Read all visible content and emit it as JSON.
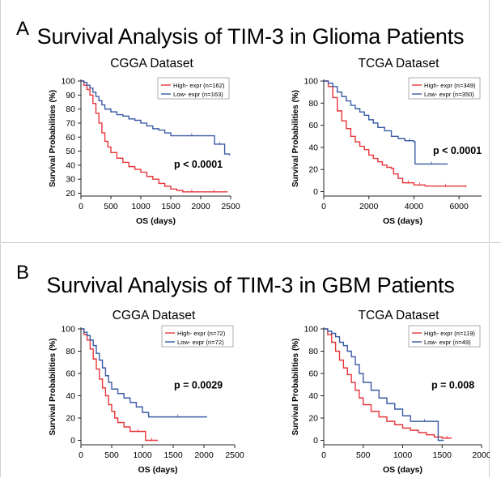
{
  "panels": [
    {
      "letter": "A",
      "title": "Survival Analysis of TIM-3 in Glioma Patients"
    },
    {
      "letter": "B",
      "title": "Survival Analysis of TIM-3 in GBM Patients"
    }
  ],
  "colors": {
    "high": "#e8363b",
    "low": "#3a5ba5",
    "axis": "#222222"
  },
  "chart_data": [
    {
      "type": "line",
      "title": "CGGA Dataset",
      "xlabel": "OS (days)",
      "ylabel": "Survival Probabilities (%)",
      "xlim": [
        0,
        2500
      ],
      "ylim": [
        18,
        100
      ],
      "xticks": [
        0,
        500,
        1000,
        1500,
        2000,
        2500
      ],
      "yticks": [
        20,
        30,
        40,
        50,
        60,
        70,
        80,
        90,
        100
      ],
      "pvalue": "p < 0.0001",
      "legend_position": "top-right",
      "series": [
        {
          "name": "High- expr (n=162)",
          "color": "#e8363b",
          "points": [
            [
              0,
              100
            ],
            [
              50,
              97
            ],
            [
              100,
              94
            ],
            [
              150,
              90
            ],
            [
              200,
              84
            ],
            [
              250,
              77
            ],
            [
              300,
              70
            ],
            [
              350,
              63
            ],
            [
              400,
              57
            ],
            [
              450,
              53
            ],
            [
              500,
              49
            ],
            [
              600,
              45
            ],
            [
              700,
              42
            ],
            [
              800,
              39
            ],
            [
              900,
              37
            ],
            [
              1000,
              35
            ],
            [
              1100,
              32
            ],
            [
              1200,
              30
            ],
            [
              1300,
              27
            ],
            [
              1400,
              25
            ],
            [
              1500,
              23
            ],
            [
              1600,
              22
            ],
            [
              1700,
              21
            ],
            [
              2000,
              21
            ],
            [
              2450,
              21
            ]
          ]
        },
        {
          "name": "Low- expr (n=163)",
          "color": "#3a5ba5",
          "points": [
            [
              0,
              100
            ],
            [
              50,
              99
            ],
            [
              100,
              97
            ],
            [
              150,
              95
            ],
            [
              200,
              92
            ],
            [
              250,
              89
            ],
            [
              300,
              86
            ],
            [
              350,
              83
            ],
            [
              400,
              80
            ],
            [
              500,
              78
            ],
            [
              600,
              76
            ],
            [
              700,
              75
            ],
            [
              800,
              73
            ],
            [
              900,
              72
            ],
            [
              1000,
              70
            ],
            [
              1100,
              68
            ],
            [
              1200,
              66
            ],
            [
              1300,
              65
            ],
            [
              1400,
              63
            ],
            [
              1500,
              61
            ],
            [
              2200,
              61
            ],
            [
              2230,
              55
            ],
            [
              2400,
              48
            ],
            [
              2480,
              47
            ]
          ]
        }
      ]
    },
    {
      "type": "line",
      "title": "TCGA Dataset",
      "xlabel": "OS (days)",
      "ylabel": "Survival Probabilities (%)",
      "xlim": [
        0,
        7000
      ],
      "ylim": [
        -4,
        100
      ],
      "xticks": [
        0,
        2000,
        4000,
        6000
      ],
      "yticks": [
        0,
        20,
        40,
        60,
        80,
        100
      ],
      "pvalue": "p < 0.0001",
      "legend_position": "top-right",
      "series": [
        {
          "name": "High- expr (n=349)",
          "color": "#e8363b",
          "points": [
            [
              0,
              100
            ],
            [
              200,
              95
            ],
            [
              400,
              85
            ],
            [
              600,
              73
            ],
            [
              800,
              64
            ],
            [
              1000,
              57
            ],
            [
              1200,
              50
            ],
            [
              1400,
              45
            ],
            [
              1600,
              41
            ],
            [
              1800,
              38
            ],
            [
              2000,
              33
            ],
            [
              2200,
              30
            ],
            [
              2400,
              27
            ],
            [
              2600,
              24
            ],
            [
              2800,
              22
            ],
            [
              3000,
              21
            ],
            [
              3100,
              16
            ],
            [
              3300,
              12
            ],
            [
              3500,
              8
            ],
            [
              4000,
              6
            ],
            [
              4500,
              5
            ],
            [
              6300,
              4
            ]
          ]
        },
        {
          "name": "Low- expr (n=350)",
          "color": "#3a5ba5",
          "points": [
            [
              0,
              100
            ],
            [
              200,
              98
            ],
            [
              400,
              95
            ],
            [
              600,
              90
            ],
            [
              800,
              86
            ],
            [
              1000,
              82
            ],
            [
              1200,
              78
            ],
            [
              1400,
              75
            ],
            [
              1600,
              72
            ],
            [
              1800,
              69
            ],
            [
              2000,
              65
            ],
            [
              2200,
              62
            ],
            [
              2400,
              58
            ],
            [
              2700,
              55
            ],
            [
              3000,
              50
            ],
            [
              3300,
              48
            ],
            [
              3600,
              46
            ],
            [
              4000,
              45
            ],
            [
              4050,
              25
            ],
            [
              5500,
              25
            ]
          ]
        }
      ]
    },
    {
      "type": "line",
      "title": "CGGA Dataset",
      "xlabel": "OS (days)",
      "ylabel": "Survival Probabilities (%)",
      "xlim": [
        0,
        2500
      ],
      "ylim": [
        -4,
        100
      ],
      "xticks": [
        0,
        500,
        1000,
        1500,
        2000,
        2500
      ],
      "yticks": [
        0,
        20,
        40,
        60,
        80,
        100
      ],
      "pvalue": "p = 0.0029",
      "legend_position": "top-right",
      "series": [
        {
          "name": "High- expr (n=72)",
          "color": "#e8363b",
          "points": [
            [
              0,
              100
            ],
            [
              50,
              95
            ],
            [
              100,
              90
            ],
            [
              150,
              82
            ],
            [
              200,
              73
            ],
            [
              250,
              64
            ],
            [
              300,
              55
            ],
            [
              350,
              47
            ],
            [
              400,
              40
            ],
            [
              450,
              32
            ],
            [
              500,
              26
            ],
            [
              550,
              20
            ],
            [
              600,
              16
            ],
            [
              700,
              12
            ],
            [
              800,
              8
            ],
            [
              1050,
              8
            ],
            [
              1050,
              0
            ],
            [
              1250,
              0
            ]
          ]
        },
        {
          "name": "Low- expr (n=72)",
          "color": "#3a5ba5",
          "points": [
            [
              0,
              100
            ],
            [
              50,
              97
            ],
            [
              100,
              94
            ],
            [
              150,
              90
            ],
            [
              200,
              85
            ],
            [
              250,
              78
            ],
            [
              300,
              72
            ],
            [
              350,
              65
            ],
            [
              400,
              58
            ],
            [
              450,
              52
            ],
            [
              500,
              46
            ],
            [
              600,
              42
            ],
            [
              700,
              38
            ],
            [
              800,
              34
            ],
            [
              900,
              30
            ],
            [
              1000,
              25
            ],
            [
              1100,
              21
            ],
            [
              2050,
              21
            ]
          ]
        }
      ]
    },
    {
      "type": "line",
      "title": "TCGA Dataset",
      "xlabel": "OS (days)",
      "ylabel": "Survival Probabilities (%)",
      "xlim": [
        0,
        2000
      ],
      "ylim": [
        -4,
        100
      ],
      "xticks": [
        0,
        500,
        1000,
        1500,
        2000
      ],
      "yticks": [
        0,
        20,
        40,
        60,
        80,
        100
      ],
      "pvalue": "p = 0.008",
      "legend_position": "top-right",
      "series": [
        {
          "name": "High- expr (n=119)",
          "color": "#e8363b",
          "points": [
            [
              0,
              100
            ],
            [
              50,
              95
            ],
            [
              100,
              88
            ],
            [
              150,
              80
            ],
            [
              200,
              72
            ],
            [
              250,
              65
            ],
            [
              300,
              59
            ],
            [
              350,
              52
            ],
            [
              400,
              45
            ],
            [
              450,
              38
            ],
            [
              500,
              32
            ],
            [
              600,
              26
            ],
            [
              700,
              21
            ],
            [
              800,
              17
            ],
            [
              900,
              14
            ],
            [
              1000,
              11
            ],
            [
              1100,
              9
            ],
            [
              1200,
              7
            ],
            [
              1300,
              5
            ],
            [
              1400,
              3
            ],
            [
              1500,
              2
            ],
            [
              1620,
              2
            ]
          ]
        },
        {
          "name": "Low- expr (n=49)",
          "color": "#3a5ba5",
          "points": [
            [
              0,
              100
            ],
            [
              50,
              98
            ],
            [
              100,
              96
            ],
            [
              150,
              93
            ],
            [
              200,
              88
            ],
            [
              250,
              85
            ],
            [
              300,
              80
            ],
            [
              350,
              75
            ],
            [
              400,
              68
            ],
            [
              450,
              60
            ],
            [
              500,
              52
            ],
            [
              600,
              45
            ],
            [
              700,
              38
            ],
            [
              800,
              33
            ],
            [
              900,
              28
            ],
            [
              1000,
              22
            ],
            [
              1100,
              17
            ],
            [
              1450,
              17
            ],
            [
              1450,
              0
            ],
            [
              1520,
              0
            ]
          ]
        }
      ]
    }
  ]
}
